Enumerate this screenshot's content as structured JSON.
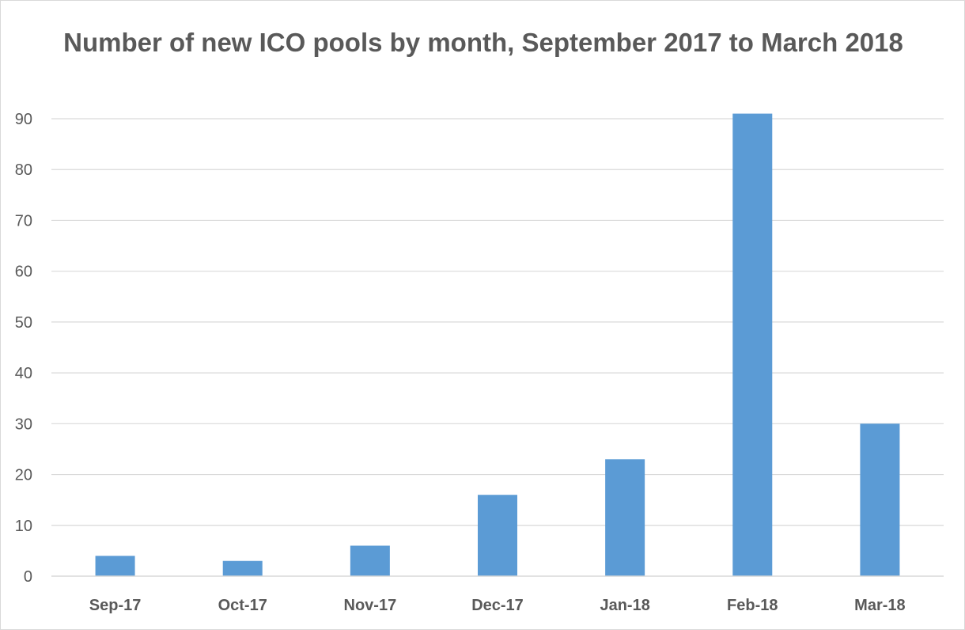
{
  "chart_data": {
    "type": "bar",
    "title": "Number of new ICO pools by month, September 2017 to March 2018",
    "xlabel": "",
    "ylabel": "",
    "categories": [
      "Sep-17",
      "Oct-17",
      "Nov-17",
      "Dec-17",
      "Jan-18",
      "Feb-18",
      "Mar-18"
    ],
    "values": [
      4,
      3,
      6,
      16,
      23,
      91,
      30
    ],
    "ylim": [
      0,
      90
    ],
    "yticks": [
      0,
      10,
      20,
      30,
      40,
      50,
      60,
      70,
      80,
      90
    ],
    "grid": true,
    "legend": "none",
    "bar_color": "#5b9bd5",
    "grid_color": "#d9d9d9",
    "text_color": "#595959"
  }
}
